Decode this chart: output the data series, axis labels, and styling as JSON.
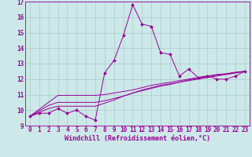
{
  "xlabel": "Windchill (Refroidissement éolien,°C)",
  "bg_color": "#cce8e8",
  "line_color": "#990099",
  "x_data": [
    0,
    1,
    2,
    3,
    4,
    5,
    6,
    7,
    8,
    9,
    10,
    11,
    12,
    13,
    14,
    15,
    16,
    17,
    18,
    19,
    20,
    21,
    22,
    23
  ],
  "y_main": [
    9.6,
    9.8,
    9.8,
    10.1,
    9.8,
    10.0,
    9.6,
    9.35,
    12.4,
    13.2,
    14.8,
    16.8,
    15.55,
    15.4,
    13.7,
    13.6,
    12.2,
    12.65,
    12.1,
    12.2,
    12.0,
    12.0,
    12.2,
    12.5
  ],
  "y_ref1": [
    9.6,
    10.05,
    10.5,
    10.95,
    10.95,
    10.95,
    10.95,
    10.95,
    11.0,
    11.1,
    11.2,
    11.3,
    11.45,
    11.6,
    11.7,
    11.8,
    11.9,
    12.0,
    12.1,
    12.2,
    12.3,
    12.35,
    12.45,
    12.5
  ],
  "y_ref2": [
    9.6,
    9.95,
    10.3,
    10.5,
    10.5,
    10.5,
    10.5,
    10.5,
    10.6,
    10.75,
    10.9,
    11.1,
    11.3,
    11.45,
    11.6,
    11.7,
    11.8,
    11.9,
    12.0,
    12.1,
    12.2,
    12.3,
    12.4,
    12.5
  ],
  "y_ref3": [
    9.6,
    9.85,
    10.1,
    10.25,
    10.25,
    10.25,
    10.25,
    10.25,
    10.45,
    10.65,
    10.9,
    11.1,
    11.25,
    11.4,
    11.55,
    11.65,
    11.8,
    11.95,
    12.05,
    12.15,
    12.25,
    12.3,
    12.4,
    12.5
  ],
  "ylim": [
    9,
    17
  ],
  "xlim": [
    -0.5,
    23.5
  ],
  "yticks": [
    9,
    10,
    11,
    12,
    13,
    14,
    15,
    16,
    17
  ],
  "xticks": [
    0,
    1,
    2,
    3,
    4,
    5,
    6,
    7,
    8,
    9,
    10,
    11,
    12,
    13,
    14,
    15,
    16,
    17,
    18,
    19,
    20,
    21,
    22,
    23
  ],
  "tick_fontsize": 5.5,
  "xlabel_fontsize": 6.0,
  "grid_color": "#aacccc"
}
